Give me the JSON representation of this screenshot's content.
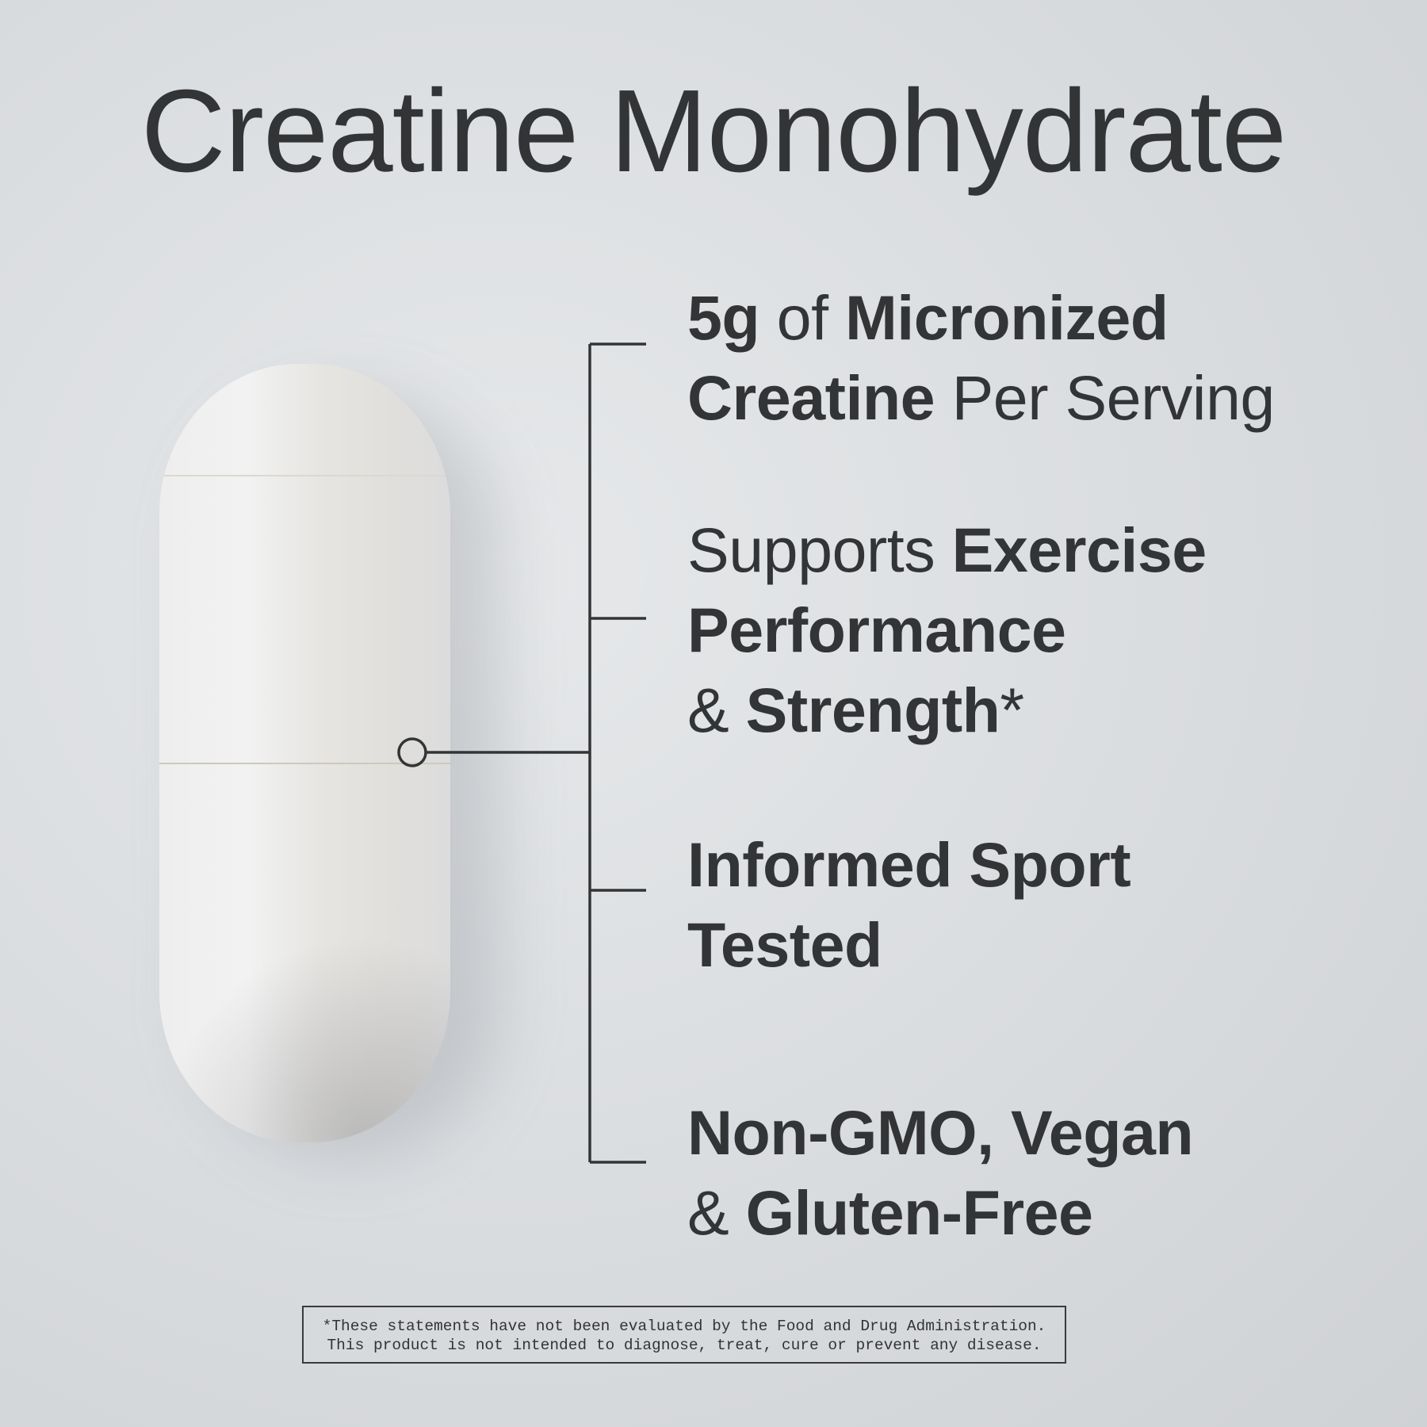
{
  "title": "Creatine Monohydrate",
  "features": [
    {
      "parts": [
        {
          "text": "5g",
          "bold": true
        },
        {
          "text": " of ",
          "bold": false
        },
        {
          "text": "Micronized",
          "bold": true
        },
        {
          "text": "Creatine",
          "bold": true
        },
        {
          "text": " Per Serving",
          "bold": false
        }
      ]
    },
    {
      "parts": [
        {
          "text": "Supports ",
          "bold": false
        },
        {
          "text": "Exercise",
          "bold": true
        },
        {
          "text": "Performance",
          "bold": true
        },
        {
          "text": "& ",
          "bold": false
        },
        {
          "text": "Strength",
          "bold": true
        },
        {
          "text": "*",
          "bold": false
        }
      ]
    },
    {
      "parts": [
        {
          "text": "Informed Sport",
          "bold": true
        },
        {
          "text": "Tested",
          "bold": true
        }
      ]
    },
    {
      "parts": [
        {
          "text": "Non-GMO, Vegan",
          "bold": true
        },
        {
          "text": "& ",
          "bold": false
        },
        {
          "text": "Gluten-Free",
          "bold": true
        }
      ]
    }
  ],
  "disclaimer": {
    "line1": "*These statements have not been evaluated by the Food and Drug Administration.",
    "line2": "This product is not intended to diagnose, treat, cure or prevent any disease."
  },
  "colors": {
    "text": "#333436",
    "background": "#d9dcdf"
  }
}
